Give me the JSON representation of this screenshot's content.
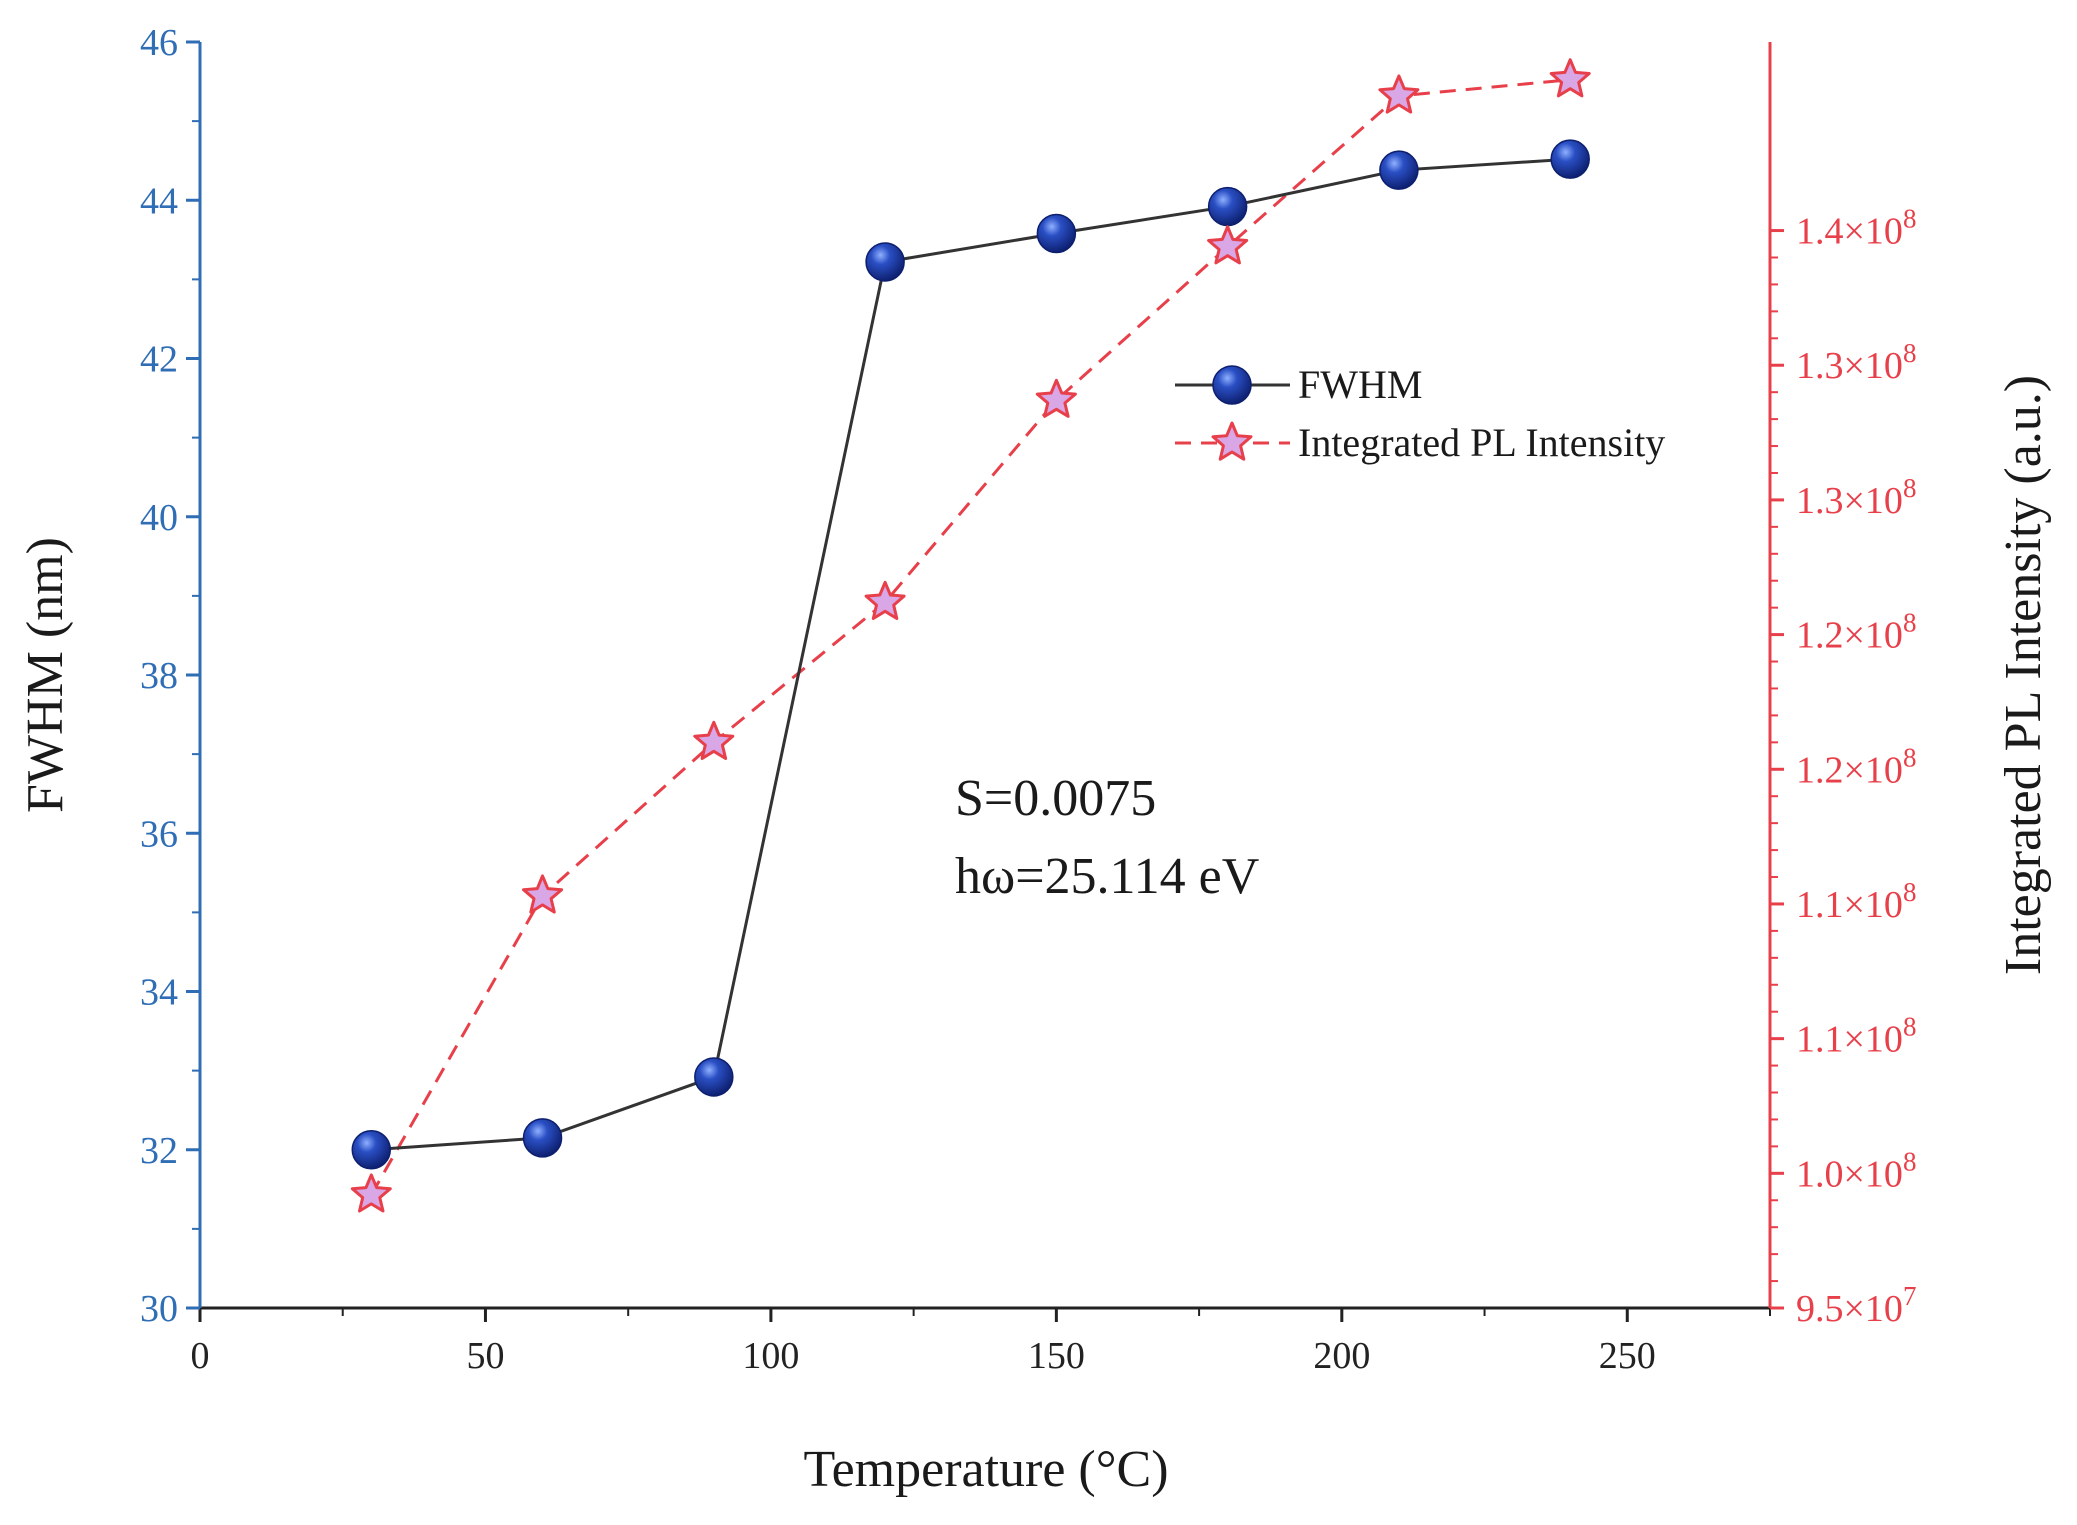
{
  "chart_data": {
    "type": "line",
    "title": "",
    "xlabel": "Temperature (°C)",
    "ylabel_left": "FWHM (nm)",
    "ylabel_right": "Integrated PL Intensity (a.u.)",
    "xlim": [
      0,
      275
    ],
    "ylim_left": [
      30,
      46
    ],
    "ylim_right": [
      95000000,
      142000000
    ],
    "x_ticks": [
      "0",
      "50",
      "100",
      "150",
      "200",
      "250"
    ],
    "y_left_ticks": [
      "30",
      "32",
      "34",
      "36",
      "38",
      "40",
      "42",
      "44",
      "46"
    ],
    "y_right_ticks": [
      {
        "mantissa": "9.5",
        "exp": "7"
      },
      {
        "mantissa": "1.0",
        "exp": "8"
      },
      {
        "mantissa": "1.1",
        "exp": "8"
      },
      {
        "mantissa": "1.1",
        "exp": "8"
      },
      {
        "mantissa": "1.2",
        "exp": "8"
      },
      {
        "mantissa": "1.2",
        "exp": "8"
      },
      {
        "mantissa": "1.3",
        "exp": "8"
      },
      {
        "mantissa": "1.3",
        "exp": "8"
      },
      {
        "mantissa": "1.4",
        "exp": "8"
      }
    ],
    "series": [
      {
        "name": "FWHM",
        "axis": "left",
        "color": "#1f3f9c",
        "line_color": "#333333",
        "marker": "circle",
        "x": [
          30,
          60,
          90,
          120,
          150,
          180,
          210,
          240
        ],
        "values": [
          32.0,
          32.15,
          32.92,
          43.22,
          43.58,
          43.92,
          44.38,
          44.52
        ]
      },
      {
        "name": "Integrated PL Intensity",
        "axis": "right",
        "color": "#e8404a",
        "marker": "star",
        "x": [
          30,
          60,
          90,
          120,
          150,
          180,
          210,
          240
        ],
        "values": [
          99200000,
          110300000,
          116000000,
          121200000,
          128700000,
          134400000,
          140000000,
          140600000
        ]
      }
    ],
    "annotations": [
      "S=0.0075",
      "hω=25.114 eV"
    ],
    "legend_position": "upper-right-inside"
  }
}
